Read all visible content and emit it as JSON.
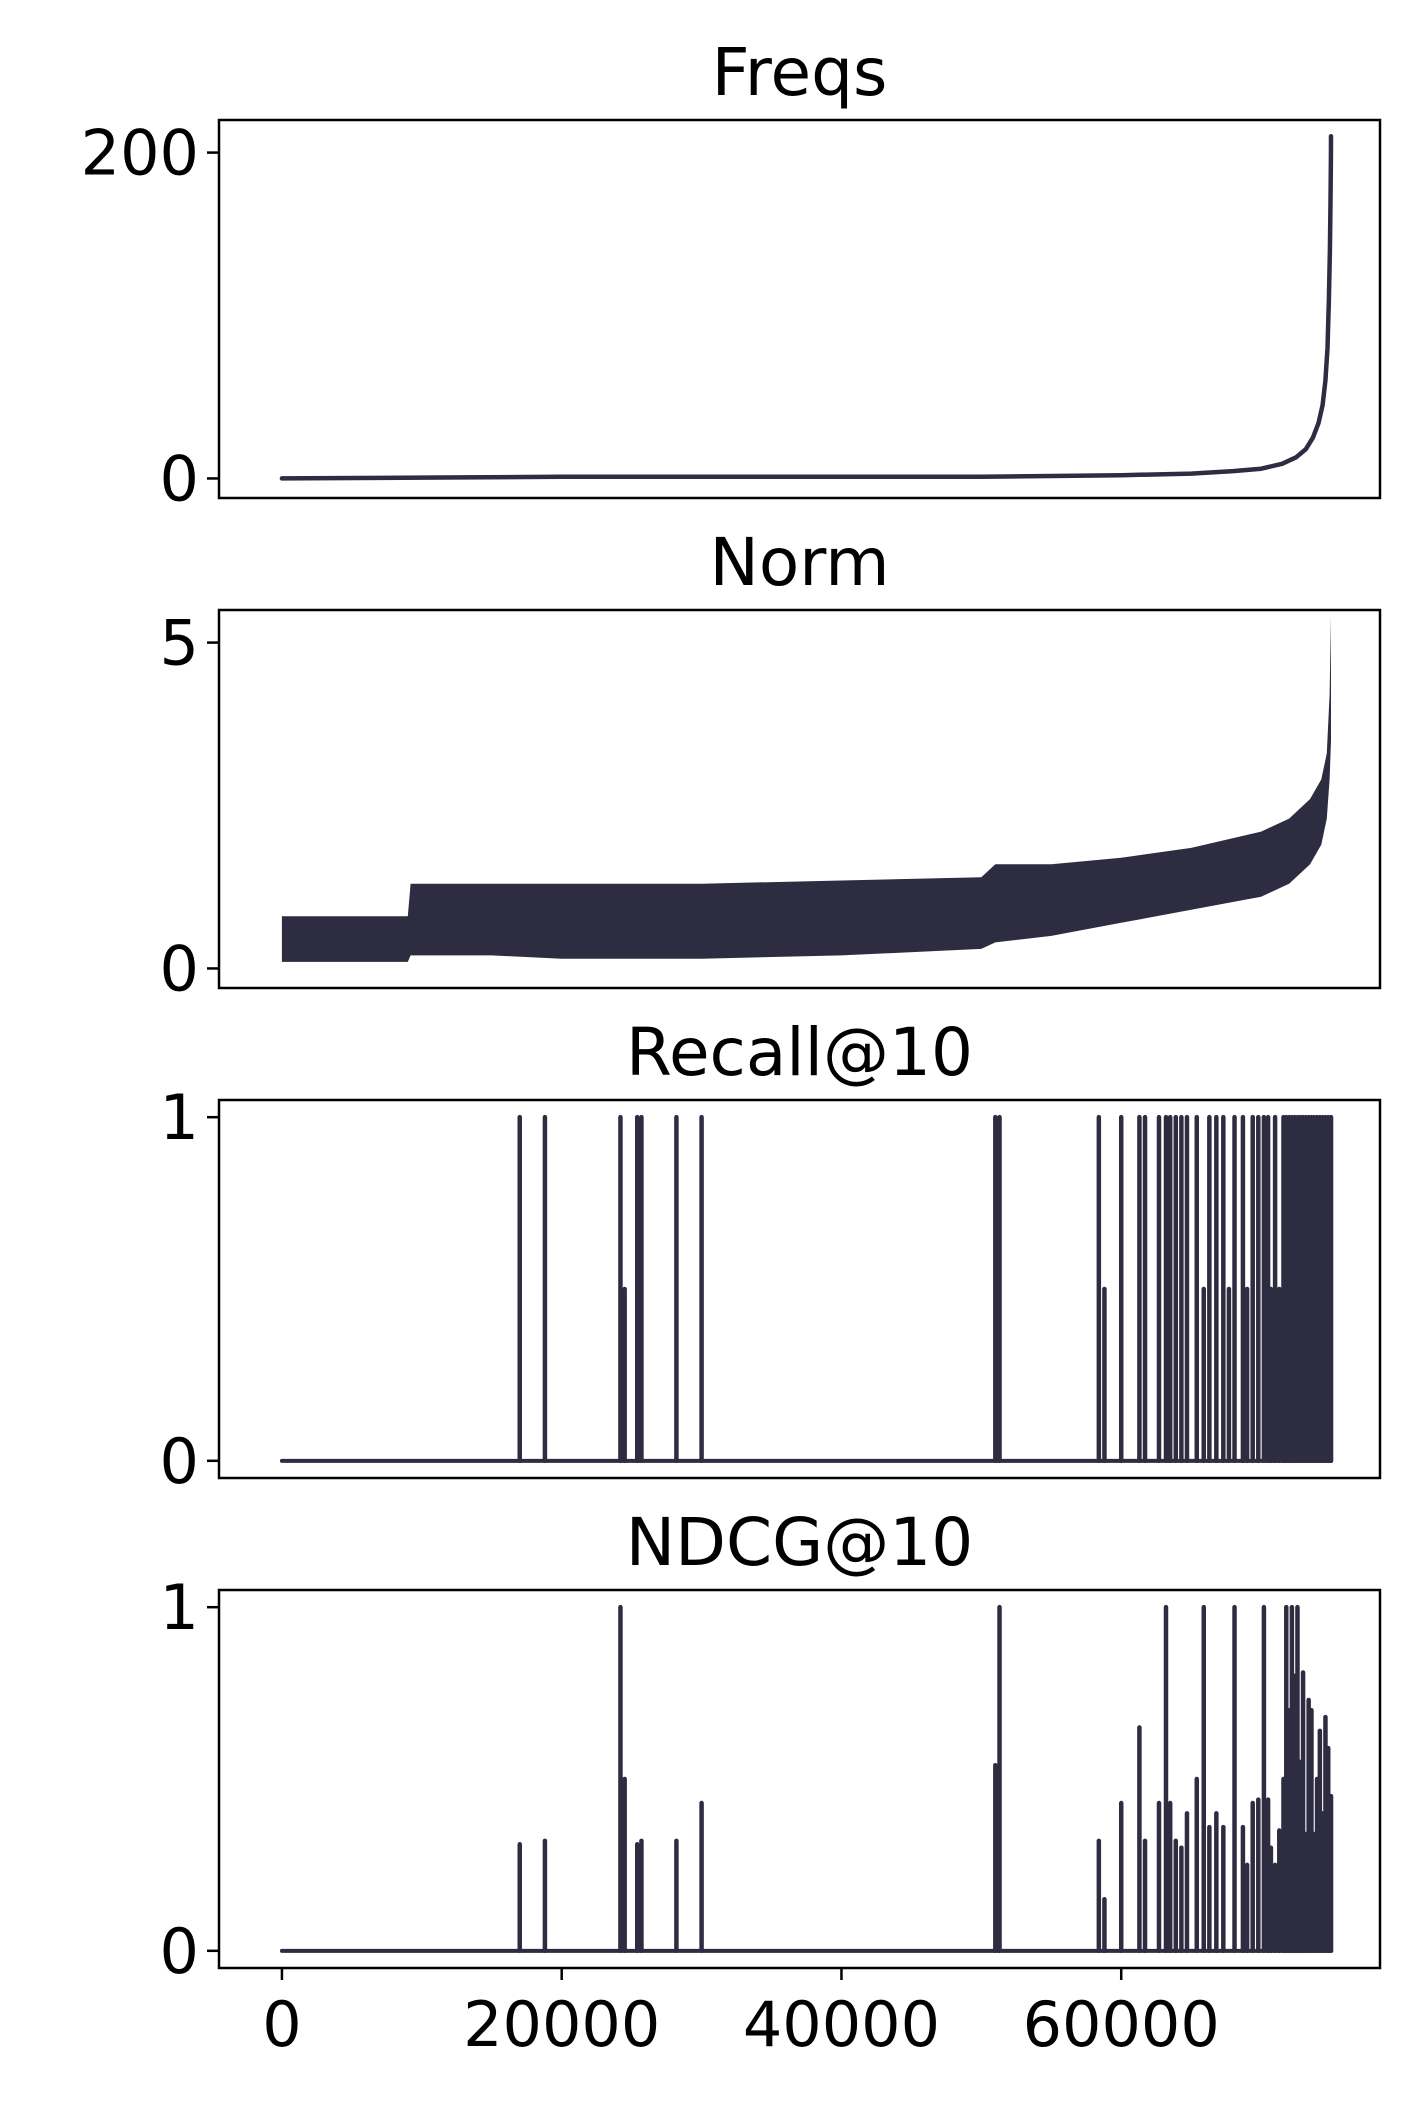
{
  "chart_data": [
    {
      "type": "line",
      "title": "Freqs",
      "xlabel": "",
      "ylabel": "",
      "xlim": [
        -4500,
        78500
      ],
      "ylim": [
        -12,
        220
      ],
      "xticks": [],
      "yticks": [
        0,
        200
      ],
      "ytick_labels": [
        "0",
        "200"
      ],
      "grid": false,
      "color": "#2e2c40",
      "x": [
        0,
        10000,
        20000,
        30000,
        40000,
        50000,
        55000,
        60000,
        65000,
        68000,
        70000,
        71500,
        72500,
        73200,
        73700,
        74100,
        74400,
        74600,
        74750,
        74850,
        74920,
        74960,
        74990,
        75000
      ],
      "y": [
        0,
        0.5,
        1,
        1,
        1,
        1,
        1.5,
        2,
        3,
        4.5,
        6,
        9,
        13,
        18,
        25,
        34,
        45,
        60,
        80,
        110,
        140,
        170,
        195,
        210
      ]
    },
    {
      "type": "area",
      "title": "Norm",
      "xlabel": "",
      "ylabel": "",
      "xlim": [
        -4500,
        78500
      ],
      "ylim": [
        -0.3,
        5.5
      ],
      "xticks": [],
      "yticks": [
        0,
        5
      ],
      "ytick_labels": [
        "0",
        "5"
      ],
      "grid": false,
      "color": "#2e2c40",
      "x": [
        0,
        4000,
        8000,
        9000,
        9200,
        15000,
        20000,
        30000,
        40000,
        50000,
        51000,
        55000,
        60000,
        65000,
        70000,
        72000,
        73500,
        74300,
        74700,
        74900,
        75000
      ],
      "y_upper": [
        0.8,
        0.8,
        0.8,
        0.8,
        1.3,
        1.3,
        1.3,
        1.3,
        1.35,
        1.4,
        1.6,
        1.6,
        1.7,
        1.85,
        2.1,
        2.3,
        2.6,
        2.9,
        3.3,
        4.2,
        5.4
      ],
      "y_lower": [
        0.1,
        0.1,
        0.1,
        0.1,
        0.2,
        0.2,
        0.15,
        0.15,
        0.2,
        0.3,
        0.4,
        0.5,
        0.7,
        0.9,
        1.1,
        1.3,
        1.6,
        1.9,
        2.3,
        2.9,
        3.5
      ]
    },
    {
      "type": "line",
      "title": "Recall@10",
      "xlabel": "",
      "ylabel": "",
      "xlim": [
        -4500,
        78500
      ],
      "ylim": [
        -0.05,
        1.05
      ],
      "xticks": [],
      "yticks": [
        0,
        1
      ],
      "ytick_labels": [
        "0",
        "1"
      ],
      "grid": false,
      "color": "#2e2c40",
      "x_range": [
        0,
        75000
      ],
      "baseline": 0,
      "spikes": [
        [
          17000,
          1
        ],
        [
          18800,
          1
        ],
        [
          24200,
          1
        ],
        [
          24500,
          0.5
        ],
        [
          25400,
          1
        ],
        [
          25700,
          1
        ],
        [
          28200,
          1
        ],
        [
          30000,
          1
        ],
        [
          51000,
          1
        ],
        [
          51300,
          1
        ],
        [
          58400,
          1
        ],
        [
          58800,
          0.5
        ],
        [
          60000,
          1
        ],
        [
          61300,
          1
        ],
        [
          61700,
          1
        ],
        [
          62700,
          1
        ],
        [
          63200,
          1
        ],
        [
          63500,
          1
        ],
        [
          63900,
          1
        ],
        [
          64300,
          1
        ],
        [
          64700,
          1
        ],
        [
          65400,
          1
        ],
        [
          65900,
          0.5
        ],
        [
          66300,
          1
        ],
        [
          66800,
          1
        ],
        [
          67300,
          1
        ],
        [
          67700,
          0.5
        ],
        [
          68100,
          1
        ],
        [
          68700,
          1
        ],
        [
          69000,
          0.5
        ],
        [
          69400,
          1
        ],
        [
          69800,
          1
        ],
        [
          70200,
          1
        ],
        [
          70500,
          1
        ],
        [
          70700,
          0.5
        ],
        [
          71000,
          1
        ],
        [
          71300,
          0.5
        ],
        [
          71600,
          1
        ],
        [
          71800,
          1
        ],
        [
          72000,
          1
        ],
        [
          72200,
          1
        ],
        [
          72400,
          1
        ],
        [
          72600,
          1
        ],
        [
          72800,
          1
        ],
        [
          73000,
          1
        ],
        [
          73200,
          1
        ],
        [
          73400,
          1
        ],
        [
          73600,
          1
        ],
        [
          73800,
          1
        ],
        [
          74000,
          1
        ],
        [
          74200,
          1
        ],
        [
          74400,
          1
        ],
        [
          74600,
          1
        ],
        [
          74800,
          1
        ],
        [
          75000,
          1
        ]
      ]
    },
    {
      "type": "line",
      "title": "NDCG@10",
      "xlabel": "",
      "ylabel": "",
      "xlim": [
        -4500,
        78500
      ],
      "ylim": [
        -0.05,
        1.05
      ],
      "xticks": [
        0,
        20000,
        40000,
        60000
      ],
      "xtick_labels": [
        "0",
        "20000",
        "40000",
        "60000"
      ],
      "yticks": [
        0,
        1
      ],
      "ytick_labels": [
        "0",
        "1"
      ],
      "grid": false,
      "color": "#2e2c40",
      "x_range": [
        0,
        75000
      ],
      "baseline": 0,
      "spikes": [
        [
          17000,
          0.31
        ],
        [
          18800,
          0.32
        ],
        [
          24200,
          1
        ],
        [
          24500,
          0.5
        ],
        [
          25400,
          0.31
        ],
        [
          25700,
          0.32
        ],
        [
          28200,
          0.32
        ],
        [
          30000,
          0.43
        ],
        [
          51000,
          0.54
        ],
        [
          51300,
          1
        ],
        [
          58400,
          0.32
        ],
        [
          58800,
          0.15
        ],
        [
          60000,
          0.43
        ],
        [
          61300,
          0.65
        ],
        [
          61700,
          0.32
        ],
        [
          62700,
          0.43
        ],
        [
          63200,
          1
        ],
        [
          63500,
          0.43
        ],
        [
          63900,
          0.32
        ],
        [
          64300,
          0.3
        ],
        [
          64700,
          0.4
        ],
        [
          65400,
          0.5
        ],
        [
          65900,
          1
        ],
        [
          66300,
          0.36
        ],
        [
          66800,
          0.4
        ],
        [
          67300,
          0.36
        ],
        [
          68100,
          1
        ],
        [
          68700,
          0.36
        ],
        [
          69000,
          0.25
        ],
        [
          69400,
          0.43
        ],
        [
          69800,
          0.44
        ],
        [
          70200,
          1
        ],
        [
          70500,
          0.44
        ],
        [
          70700,
          0.3
        ],
        [
          71000,
          0.25
        ],
        [
          71300,
          0.35
        ],
        [
          71600,
          0.5
        ],
        [
          71800,
          1
        ],
        [
          72000,
          0.7
        ],
        [
          72200,
          1
        ],
        [
          72400,
          0.8
        ],
        [
          72600,
          1
        ],
        [
          72800,
          0.55
        ],
        [
          73000,
          0.81
        ],
        [
          73200,
          0.34
        ],
        [
          73400,
          0.73
        ],
        [
          73600,
          0.7
        ],
        [
          73800,
          0.34
        ],
        [
          74000,
          0.5
        ],
        [
          74200,
          0.64
        ],
        [
          74400,
          0.4
        ],
        [
          74600,
          0.68
        ],
        [
          74800,
          0.59
        ],
        [
          75000,
          0.45
        ]
      ]
    }
  ]
}
